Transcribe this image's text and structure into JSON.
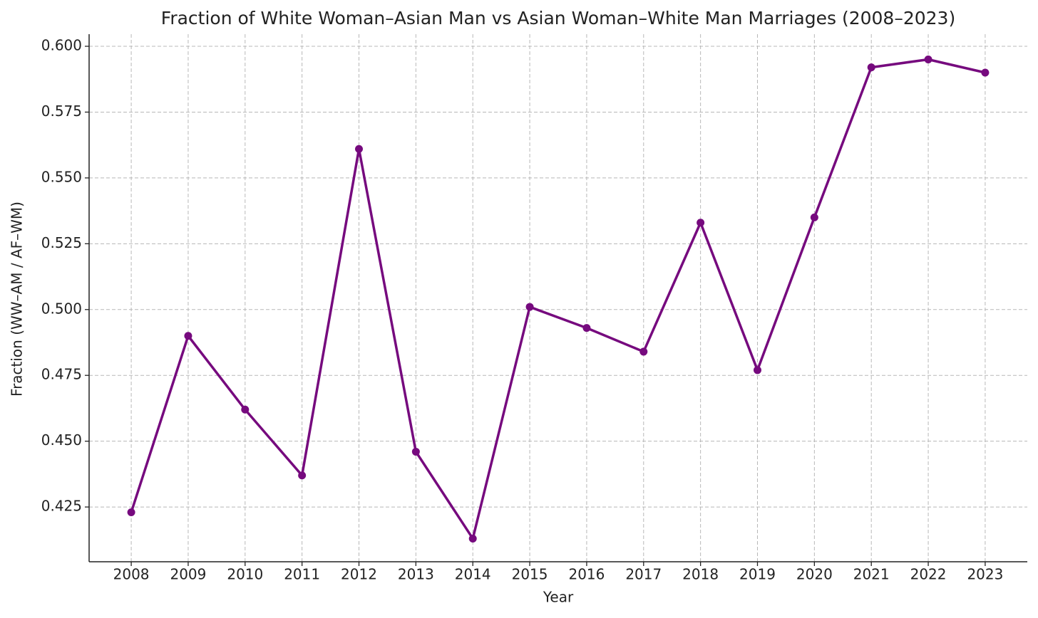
{
  "chart_data": {
    "type": "line",
    "title": "Fraction of White Woman–Asian Man vs Asian Woman–White Man Marriages (2008–2023)",
    "x_label": "Year",
    "y_label": "Fraction (WW–AM / AF–WM)",
    "x": [
      2008,
      2009,
      2010,
      2011,
      2012,
      2013,
      2014,
      2015,
      2016,
      2017,
      2018,
      2019,
      2020,
      2021,
      2022,
      2023
    ],
    "series": [
      {
        "color": "#760a7e",
        "values": [
          0.423,
          0.49,
          0.462,
          0.437,
          0.561,
          0.446,
          0.413,
          0.501,
          0.493,
          0.484,
          0.533,
          0.477,
          0.535,
          0.592,
          0.595,
          0.59
        ]
      }
    ],
    "xlim": [
      2007.26,
      2023.74
    ],
    "xticks": [
      2008,
      2009,
      2010,
      2011,
      2012,
      2013,
      2014,
      2015,
      2016,
      2017,
      2018,
      2019,
      2020,
      2021,
      2022,
      2023
    ],
    "ylim": [
      0.4042,
      0.6046
    ],
    "yticks": [
      {
        "value": 0.425,
        "label": "0.425"
      },
      {
        "value": 0.45,
        "label": "0.450"
      },
      {
        "value": 0.475,
        "label": "0.475"
      },
      {
        "value": 0.5,
        "label": "0.500"
      },
      {
        "value": 0.525,
        "label": "0.525"
      },
      {
        "value": 0.55,
        "label": "0.550"
      },
      {
        "value": 0.575,
        "label": "0.575"
      },
      {
        "value": 0.6,
        "label": "0.600"
      }
    ],
    "grid": true
  }
}
